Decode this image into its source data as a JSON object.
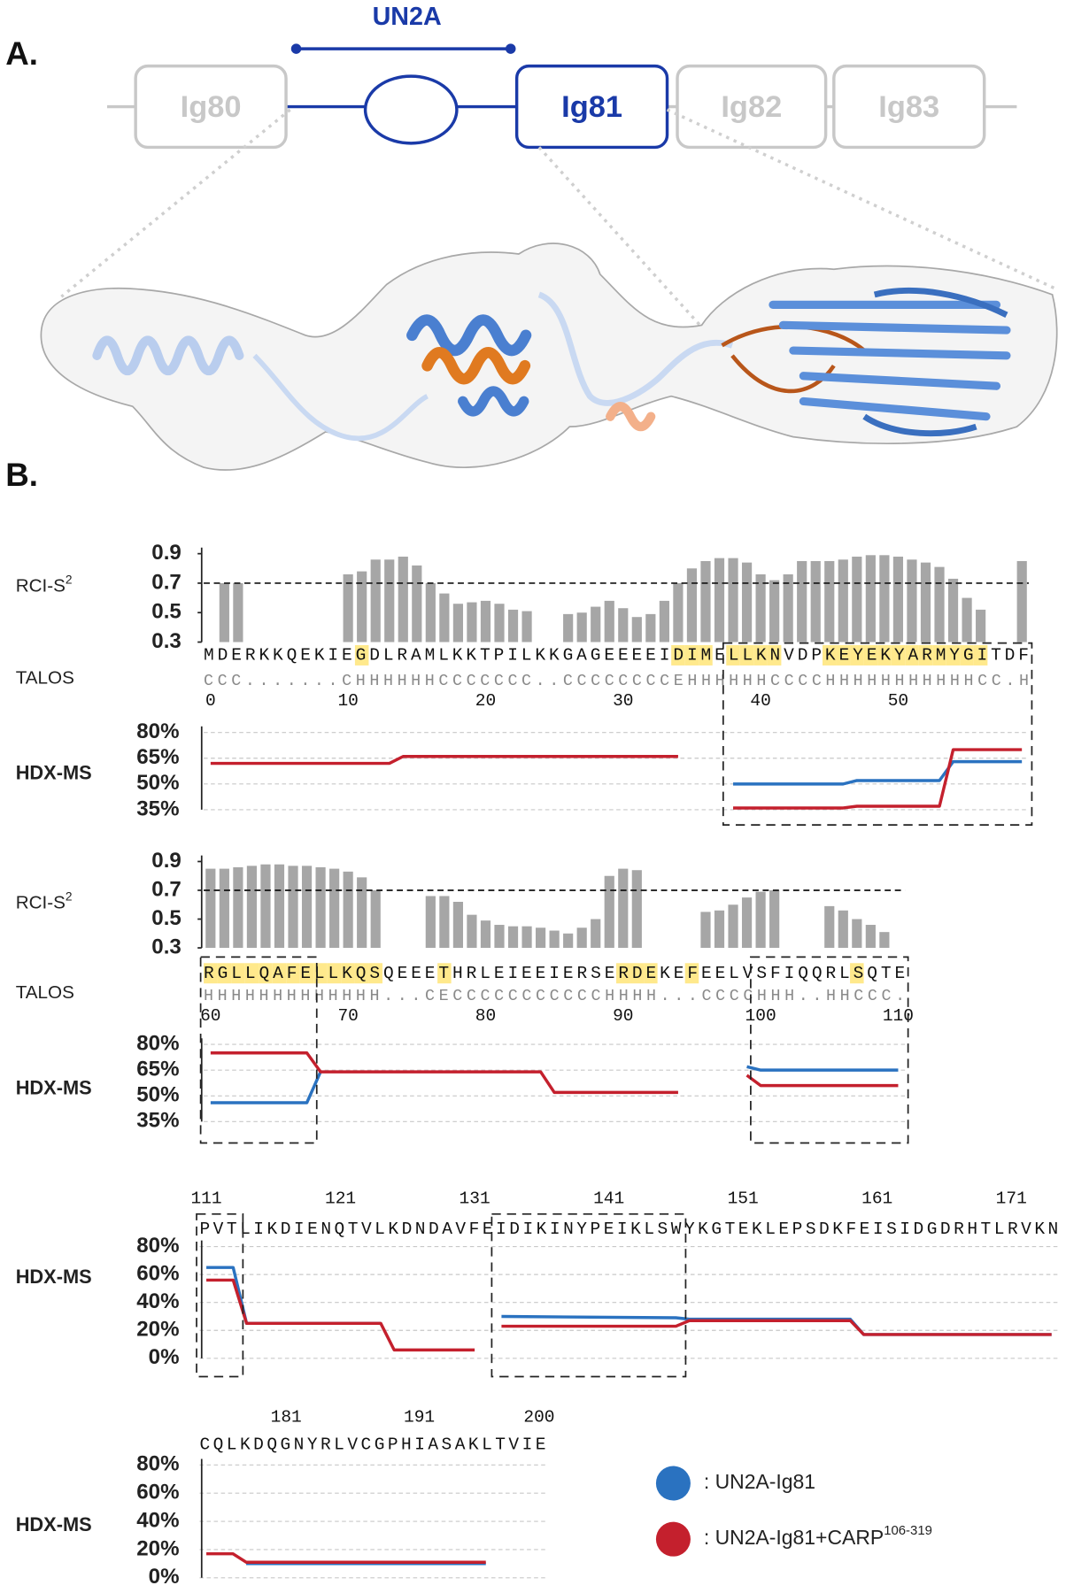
{
  "panel_a": {
    "label": "A.",
    "linker": "UN2A",
    "domains": [
      "Ig80",
      "Ig81",
      "Ig82",
      "Ig83"
    ]
  },
  "panel_b": {
    "label": "B."
  },
  "legend": [
    {
      "label": ": UN2A-Ig81",
      "color": "#2a72c0"
    },
    {
      "label": ": UN2A-Ig81+CARP",
      "sup": "106-319",
      "color": "#c4202d"
    }
  ],
  "sequence_rows": [
    {
      "start": 0,
      "label": "TALOS",
      "sequence": "MDERKKQEKIEGDLRAMLKKTPILKKGAGEEEEIDIMELLKNVDPKEYEKYARMYGITDF",
      "structure": "CCC.......CHHHHHHCCCCCCC..CCCCCCCCEHHHHHHCCCCHHHHHHHHHHHCC.H",
      "numbers": [
        0,
        10,
        20,
        30,
        40,
        50
      ],
      "highlighted": [
        11,
        34,
        35,
        36,
        38,
        39,
        40,
        41,
        45,
        46,
        47,
        48,
        49,
        50,
        51,
        52,
        53,
        54,
        55,
        56
      ]
    },
    {
      "start": 60,
      "label": "TALOS",
      "sequence": "RGLLQAFELLKQSQEEETHRLEIEEIERSERDEKEFEELVSFIQQRLSQTE",
      "structure": "HHHHHHHHHHHHH...CECCCCCCCCCCCHHHH...CCCCHHH..HHCCC.",
      "numbers": [
        60,
        70,
        80,
        90,
        100,
        110
      ],
      "highlighted": [
        60,
        61,
        62,
        63,
        64,
        65,
        66,
        67,
        68,
        69,
        70,
        71,
        72,
        77,
        90,
        91,
        92,
        95,
        107
      ]
    },
    {
      "start": 111,
      "sequence": "PVTLIKDIENQTVLKDNDAVFEIDIKINYPEIKLSWYKGTEKLEPSDKFEISIDGDRHTLRVKN",
      "numbers": [
        111,
        121,
        131,
        141,
        151,
        161,
        171
      ]
    },
    {
      "start": 175,
      "sequence": "CQLKDQGNYRLVCGPHIASAKLTVIE",
      "numbers": [
        181,
        191,
        200
      ]
    }
  ],
  "chart_data": [
    {
      "type": "bar",
      "ylabel": "RCI-S",
      "ylabel_sup": "2",
      "color": "#a6a6a6",
      "ylim": [
        0.3,
        0.9
      ],
      "yticks": [
        0.3,
        0.5,
        0.7,
        0.9
      ],
      "threshold": 0.7,
      "values": [
        null,
        0.7,
        0.7,
        null,
        null,
        null,
        null,
        null,
        null,
        null,
        0.76,
        0.78,
        0.86,
        0.86,
        0.88,
        0.82,
        0.7,
        0.63,
        0.56,
        0.57,
        0.58,
        0.56,
        0.52,
        0.51,
        null,
        null,
        0.49,
        0.5,
        0.54,
        0.58,
        0.53,
        0.47,
        0.49,
        0.58,
        0.7,
        0.8,
        0.85,
        0.87,
        0.87,
        0.84,
        0.76,
        0.72,
        0.76,
        0.85,
        0.85,
        0.85,
        0.86,
        0.88,
        0.89,
        0.89,
        0.88,
        0.86,
        0.84,
        0.81,
        0.73,
        0.6,
        0.52,
        null,
        null,
        0.85
      ]
    },
    {
      "type": "line",
      "ylabel": "HDX-MS",
      "grid": true,
      "ylim": [
        35,
        80
      ],
      "yticks": [
        {
          "value": 35,
          "label": "35%"
        },
        {
          "value": 50,
          "label": "50%"
        },
        {
          "value": 65,
          "label": "65%"
        },
        {
          "value": 80,
          "label": "80%"
        }
      ],
      "x": [
        0,
        13,
        14,
        34,
        35,
        38,
        46,
        47,
        53,
        54,
        59
      ],
      "series": [
        {
          "color": "#2a72c0",
          "values": [
            null,
            null,
            null,
            null,
            null,
            50,
            50,
            52,
            52,
            63,
            63
          ]
        },
        {
          "color": "#c4202d",
          "values": [
            62,
            62,
            66,
            66,
            null,
            36,
            36,
            37,
            37,
            70,
            70
          ]
        }
      ],
      "boxes": [
        [
          38,
          59
        ]
      ]
    },
    {
      "type": "bar",
      "ylabel": "RCI-S",
      "ylabel_sup": "2",
      "color": "#a6a6a6",
      "ylim": [
        0.3,
        0.9
      ],
      "yticks": [
        0.3,
        0.5,
        0.7,
        0.9
      ],
      "threshold": 0.7,
      "values": [
        0.85,
        0.85,
        0.86,
        0.87,
        0.88,
        0.88,
        0.87,
        0.87,
        0.86,
        0.85,
        0.83,
        0.79,
        0.7,
        null,
        null,
        null,
        0.66,
        0.66,
        0.62,
        0.53,
        0.49,
        0.46,
        0.45,
        0.45,
        0.44,
        0.42,
        0.4,
        0.44,
        0.5,
        0.8,
        0.85,
        0.84,
        null,
        null,
        null,
        null,
        0.55,
        0.56,
        0.6,
        0.65,
        0.69,
        0.7,
        null,
        null,
        null,
        0.59,
        0.56,
        0.5,
        0.46,
        0.41,
        null
      ]
    },
    {
      "type": "line",
      "ylabel": "HDX-MS",
      "grid": true,
      "ylim": [
        35,
        80
      ],
      "yticks": [
        {
          "value": 35,
          "label": "35%"
        },
        {
          "value": 50,
          "label": "50%"
        },
        {
          "value": 65,
          "label": "65%"
        },
        {
          "value": 80,
          "label": "80%"
        }
      ],
      "x": [
        60,
        67,
        68,
        84,
        85,
        94,
        95,
        99,
        100,
        110
      ],
      "series": [
        {
          "color": "#2a72c0",
          "values": [
            46,
            46,
            64,
            null,
            null,
            null,
            null,
            67,
            65,
            65
          ]
        },
        {
          "color": "#c4202d",
          "values": [
            75,
            75,
            64,
            64,
            52,
            52,
            null,
            62,
            56,
            56
          ]
        }
      ],
      "boxes": [
        [
          60,
          67
        ],
        [
          100,
          110
        ]
      ]
    },
    {
      "type": "line",
      "ylabel": "HDX-MS",
      "grid": true,
      "ylim": [
        0,
        80
      ],
      "yticks": [
        {
          "value": 0,
          "label": "0%"
        },
        {
          "value": 20,
          "label": "20%"
        },
        {
          "value": 40,
          "label": "40%"
        },
        {
          "value": 60,
          "label": "60%"
        },
        {
          "value": 80,
          "label": "80%"
        }
      ],
      "x": [
        111,
        113,
        114,
        124,
        125,
        131,
        132,
        133,
        146,
        147,
        159,
        160,
        174
      ],
      "series": [
        {
          "color": "#2a72c0",
          "values": [
            65,
            65,
            25,
            25,
            null,
            null,
            null,
            30,
            29,
            28,
            28,
            17,
            17
          ]
        },
        {
          "color": "#c4202d",
          "values": [
            56,
            56,
            25,
            25,
            6,
            6,
            null,
            23,
            23,
            27,
            27,
            17,
            17
          ]
        }
      ],
      "boxes": [
        [
          111,
          113
        ],
        [
          133,
          146
        ]
      ]
    },
    {
      "type": "line",
      "ylabel": "HDX-MS",
      "grid": true,
      "ylim": [
        0,
        80
      ],
      "yticks": [
        {
          "value": 0,
          "label": "0%"
        },
        {
          "value": 20,
          "label": "20%"
        },
        {
          "value": 40,
          "label": "40%"
        },
        {
          "value": 60,
          "label": "60%"
        },
        {
          "value": 80,
          "label": "80%"
        }
      ],
      "x": [
        175,
        177,
        178,
        196
      ],
      "series": [
        {
          "color": "#2a72c0",
          "values": [
            null,
            null,
            10,
            10
          ]
        },
        {
          "color": "#c4202d",
          "values": [
            17,
            17,
            11,
            11
          ]
        }
      ]
    }
  ]
}
